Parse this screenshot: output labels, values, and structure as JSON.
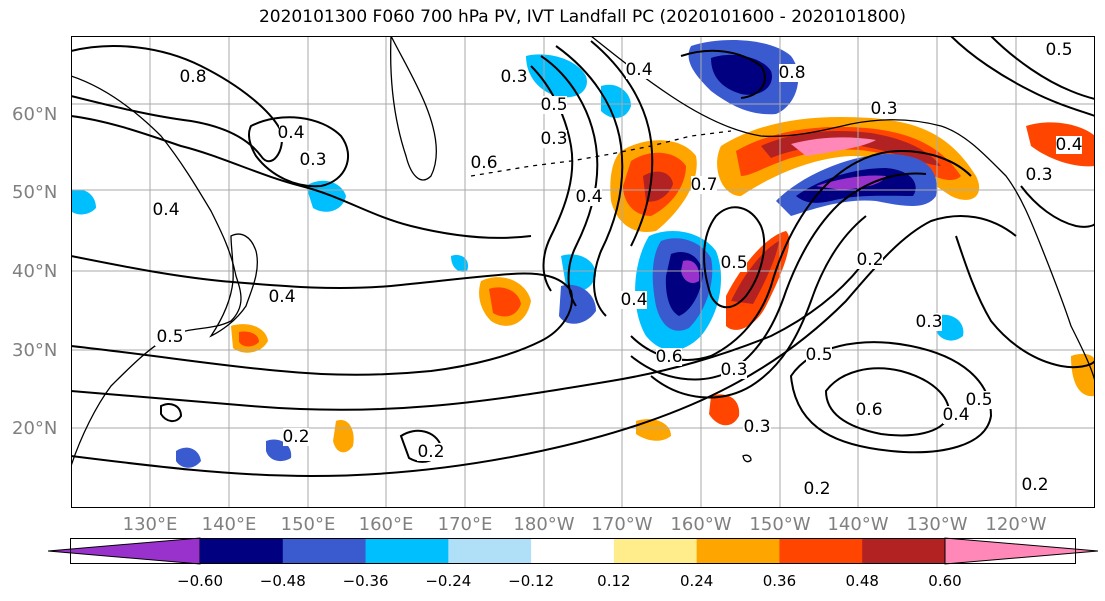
{
  "title": "2020101300 F060 700 hPa PV, IVT Landfall PC (2020101600 - 2020101800)",
  "lat_labels": [
    "60°N",
    "50°N",
    "40°N",
    "30°N",
    "20°N"
  ],
  "lon_labels": [
    "130°E",
    "140°E",
    "150°E",
    "160°E",
    "170°E",
    "180°W",
    "170°W",
    "160°W",
    "150°W",
    "140°W",
    "130°W",
    "120°W"
  ],
  "contour_labels": [
    "0.8",
    "0.4",
    "0.3",
    "0.4",
    "0.5",
    "0.4",
    "0.2",
    "0.2",
    "0.4",
    "0.5",
    "0.6",
    "0.4",
    "0.3",
    "0.3",
    "0.8",
    "0.3",
    "0.5",
    "0.3",
    "0.2",
    "0.3",
    "0.5",
    "0.4",
    "0.6",
    "0.5",
    "0.2",
    "0.3",
    "0.2",
    "0.6",
    "0.7",
    "0.4",
    "0.5",
    "0.4",
    "0.3"
  ],
  "colorbar": {
    "colors": [
      "#9932cc",
      "#000080",
      "#3a5bd0",
      "#00bfff",
      "#b0e0f8",
      "#ffffff",
      "#ffec8b",
      "#ffa500",
      "#ff4500",
      "#b22222",
      "#ff88b8"
    ],
    "ticks": [
      "−0.60",
      "−0.48",
      "−0.36",
      "−0.24",
      "−0.12",
      "0.12",
      "0.24",
      "0.36",
      "0.48",
      "0.60"
    ]
  },
  "colors": {
    "grid": "#aaaaaa",
    "contour": "#000000",
    "coast": "#000000"
  }
}
